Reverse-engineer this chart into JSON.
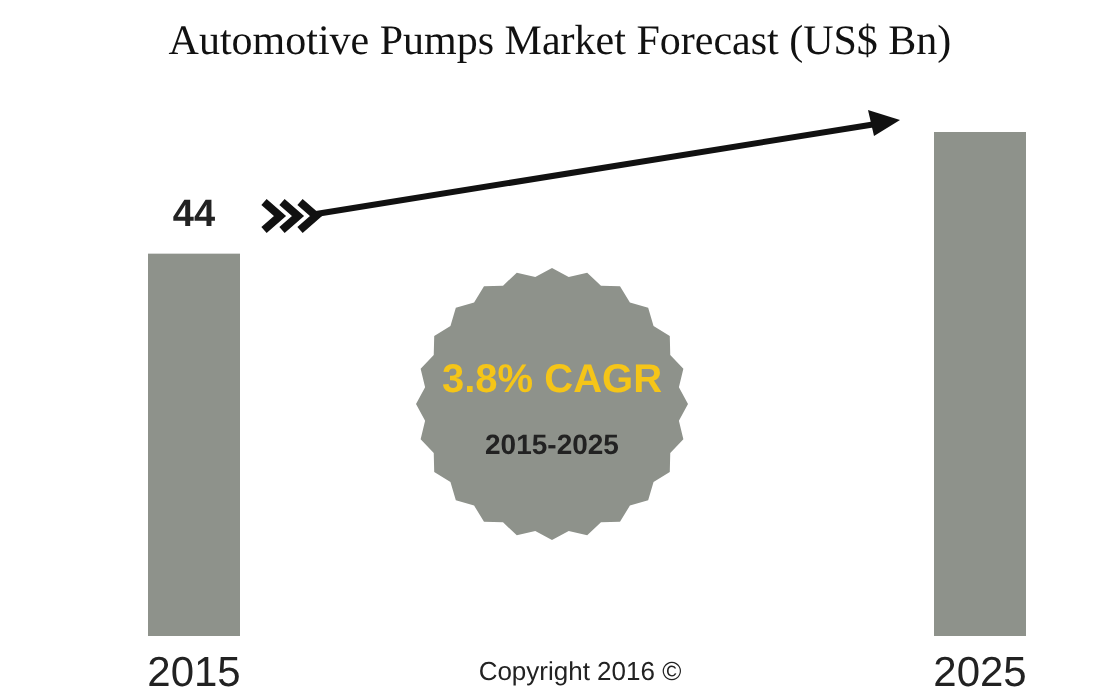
{
  "chart_data": {
    "type": "bar",
    "title": "Automotive Pumps Market Forecast (US$ Bn)",
    "categories": [
      "2015",
      "2025"
    ],
    "values": [
      44,
      58
    ],
    "value_labels": [
      "44",
      null
    ],
    "color": "#8e928b",
    "annotations": [
      "3.8% CAGR",
      "2015-2025",
      "Copyright 2016 ©"
    ]
  }
}
